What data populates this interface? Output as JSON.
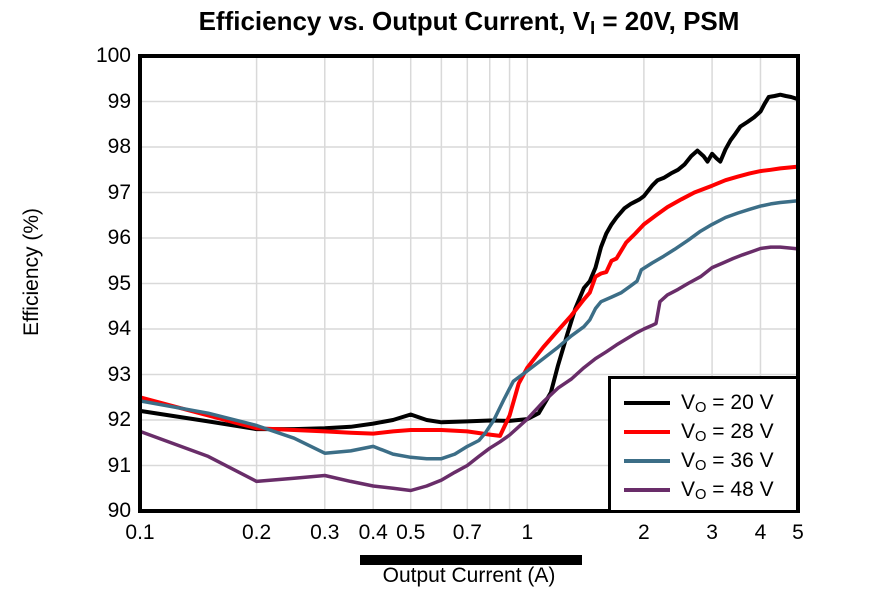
{
  "chart_data": {
    "type": "line",
    "title": {
      "prefix": "Efficiency vs. Output Current, V",
      "sub": "I",
      "suffix": " = 20V, PSM"
    },
    "xlabel": "Output Current (A)",
    "ylabel": "Efficiency (%)",
    "x_scale": "log",
    "xlim": [
      0.1,
      5
    ],
    "ylim": [
      90,
      100
    ],
    "grid": true,
    "grid_color": "#d9d9d9",
    "legend_position": "lower right",
    "x_ticks": [
      0.1,
      0.2,
      0.3,
      0.4,
      0.5,
      0.7,
      1,
      2,
      3,
      4,
      5
    ],
    "x_tick_labels": [
      "0.1",
      "0.2",
      "0.3",
      "0.4",
      "0.5",
      "0.7",
      "1",
      "2",
      "3",
      "4",
      "5"
    ],
    "y_ticks": [
      90,
      91,
      92,
      93,
      94,
      95,
      96,
      97,
      98,
      99,
      100
    ],
    "y_tick_labels": [
      "90",
      "91",
      "92",
      "93",
      "94",
      "95",
      "96",
      "97",
      "98",
      "99",
      "100"
    ],
    "x_gridlines": [
      0.2,
      0.3,
      0.4,
      0.5,
      0.6,
      0.7,
      0.8,
      0.9,
      1,
      2,
      3,
      4
    ],
    "y_gridlines": [
      91,
      92,
      93,
      94,
      95,
      96,
      97,
      98,
      99
    ],
    "series": [
      {
        "label_prefix": "V",
        "label_sub": "O",
        "label_suffix": " = 20 V",
        "color": "#000000",
        "line_width": 4,
        "points": [
          [
            0.1,
            92.2
          ],
          [
            0.15,
            91.97
          ],
          [
            0.2,
            91.8
          ],
          [
            0.25,
            91.8
          ],
          [
            0.3,
            91.82
          ],
          [
            0.35,
            91.85
          ],
          [
            0.4,
            91.92
          ],
          [
            0.45,
            92.0
          ],
          [
            0.5,
            92.12
          ],
          [
            0.55,
            92.0
          ],
          [
            0.6,
            91.95
          ],
          [
            0.7,
            91.97
          ],
          [
            0.8,
            91.99
          ],
          [
            0.9,
            91.98
          ],
          [
            1.0,
            92.02
          ],
          [
            1.07,
            92.15
          ],
          [
            1.15,
            92.6
          ],
          [
            1.2,
            93.2
          ],
          [
            1.27,
            93.9
          ],
          [
            1.33,
            94.45
          ],
          [
            1.4,
            94.9
          ],
          [
            1.45,
            95.05
          ],
          [
            1.5,
            95.35
          ],
          [
            1.55,
            95.8
          ],
          [
            1.6,
            96.1
          ],
          [
            1.65,
            96.3
          ],
          [
            1.7,
            96.45
          ],
          [
            1.78,
            96.65
          ],
          [
            1.85,
            96.75
          ],
          [
            1.95,
            96.85
          ],
          [
            2.0,
            96.92
          ],
          [
            2.1,
            97.15
          ],
          [
            2.17,
            97.27
          ],
          [
            2.25,
            97.32
          ],
          [
            2.35,
            97.42
          ],
          [
            2.45,
            97.5
          ],
          [
            2.55,
            97.62
          ],
          [
            2.65,
            97.8
          ],
          [
            2.75,
            97.92
          ],
          [
            2.85,
            97.8
          ],
          [
            2.92,
            97.68
          ],
          [
            3.0,
            97.85
          ],
          [
            3.08,
            97.75
          ],
          [
            3.15,
            97.68
          ],
          [
            3.25,
            97.95
          ],
          [
            3.35,
            98.15
          ],
          [
            3.45,
            98.3
          ],
          [
            3.55,
            98.45
          ],
          [
            3.7,
            98.55
          ],
          [
            3.85,
            98.65
          ],
          [
            4.0,
            98.78
          ],
          [
            4.1,
            98.95
          ],
          [
            4.2,
            99.1
          ],
          [
            4.35,
            99.12
          ],
          [
            4.5,
            99.15
          ],
          [
            4.65,
            99.12
          ],
          [
            4.8,
            99.1
          ],
          [
            5.0,
            99.05
          ]
        ]
      },
      {
        "label_prefix": "V",
        "label_sub": "O",
        "label_suffix": " = 28 V",
        "color": "#ff0000",
        "line_width": 4,
        "points": [
          [
            0.1,
            92.5
          ],
          [
            0.15,
            92.1
          ],
          [
            0.2,
            91.82
          ],
          [
            0.25,
            91.78
          ],
          [
            0.3,
            91.75
          ],
          [
            0.35,
            91.72
          ],
          [
            0.4,
            91.7
          ],
          [
            0.45,
            91.75
          ],
          [
            0.5,
            91.78
          ],
          [
            0.6,
            91.78
          ],
          [
            0.7,
            91.75
          ],
          [
            0.8,
            91.68
          ],
          [
            0.85,
            91.65
          ],
          [
            0.9,
            92.1
          ],
          [
            0.95,
            92.8
          ],
          [
            1.0,
            93.15
          ],
          [
            1.1,
            93.6
          ],
          [
            1.2,
            93.97
          ],
          [
            1.3,
            94.3
          ],
          [
            1.4,
            94.65
          ],
          [
            1.45,
            94.8
          ],
          [
            1.5,
            95.15
          ],
          [
            1.55,
            95.22
          ],
          [
            1.6,
            95.25
          ],
          [
            1.65,
            95.5
          ],
          [
            1.7,
            95.55
          ],
          [
            1.8,
            95.9
          ],
          [
            1.9,
            96.1
          ],
          [
            2.0,
            96.3
          ],
          [
            2.15,
            96.5
          ],
          [
            2.3,
            96.68
          ],
          [
            2.5,
            96.85
          ],
          [
            2.7,
            97.0
          ],
          [
            3.0,
            97.15
          ],
          [
            3.25,
            97.27
          ],
          [
            3.5,
            97.35
          ],
          [
            3.75,
            97.42
          ],
          [
            4.0,
            97.47
          ],
          [
            4.25,
            97.5
          ],
          [
            4.5,
            97.53
          ],
          [
            4.75,
            97.55
          ],
          [
            5.0,
            97.57
          ]
        ]
      },
      {
        "label_prefix": "V",
        "label_sub": "O",
        "label_suffix": " = 36 V",
        "color": "#3c6e87",
        "line_width": 3.5,
        "points": [
          [
            0.1,
            92.42
          ],
          [
            0.15,
            92.15
          ],
          [
            0.2,
            91.88
          ],
          [
            0.25,
            91.6
          ],
          [
            0.3,
            91.27
          ],
          [
            0.35,
            91.32
          ],
          [
            0.4,
            91.42
          ],
          [
            0.45,
            91.25
          ],
          [
            0.5,
            91.18
          ],
          [
            0.55,
            91.15
          ],
          [
            0.6,
            91.15
          ],
          [
            0.65,
            91.25
          ],
          [
            0.7,
            91.42
          ],
          [
            0.75,
            91.55
          ],
          [
            0.78,
            91.72
          ],
          [
            0.82,
            92.0
          ],
          [
            0.87,
            92.45
          ],
          [
            0.92,
            92.85
          ],
          [
            1.0,
            93.08
          ],
          [
            1.1,
            93.35
          ],
          [
            1.2,
            93.6
          ],
          [
            1.3,
            93.85
          ],
          [
            1.4,
            94.05
          ],
          [
            1.45,
            94.2
          ],
          [
            1.5,
            94.45
          ],
          [
            1.55,
            94.6
          ],
          [
            1.65,
            94.7
          ],
          [
            1.75,
            94.8
          ],
          [
            1.85,
            94.95
          ],
          [
            1.92,
            95.05
          ],
          [
            1.97,
            95.3
          ],
          [
            2.1,
            95.45
          ],
          [
            2.25,
            95.6
          ],
          [
            2.4,
            95.75
          ],
          [
            2.6,
            95.95
          ],
          [
            2.8,
            96.15
          ],
          [
            3.0,
            96.3
          ],
          [
            3.25,
            96.45
          ],
          [
            3.5,
            96.55
          ],
          [
            3.75,
            96.63
          ],
          [
            4.0,
            96.7
          ],
          [
            4.25,
            96.75
          ],
          [
            4.5,
            96.78
          ],
          [
            4.75,
            96.8
          ],
          [
            5.0,
            96.82
          ]
        ]
      },
      {
        "label_prefix": "V",
        "label_sub": "O",
        "label_suffix": " = 48 V",
        "color": "#692d69",
        "line_width": 3.5,
        "points": [
          [
            0.1,
            91.75
          ],
          [
            0.15,
            91.2
          ],
          [
            0.2,
            90.65
          ],
          [
            0.25,
            90.72
          ],
          [
            0.3,
            90.78
          ],
          [
            0.35,
            90.65
          ],
          [
            0.4,
            90.55
          ],
          [
            0.45,
            90.5
          ],
          [
            0.5,
            90.45
          ],
          [
            0.55,
            90.55
          ],
          [
            0.6,
            90.68
          ],
          [
            0.65,
            90.85
          ],
          [
            0.7,
            91.0
          ],
          [
            0.75,
            91.2
          ],
          [
            0.8,
            91.38
          ],
          [
            0.85,
            91.52
          ],
          [
            0.9,
            91.67
          ],
          [
            0.95,
            91.85
          ],
          [
            1.0,
            92.02
          ],
          [
            1.1,
            92.4
          ],
          [
            1.2,
            92.7
          ],
          [
            1.3,
            92.9
          ],
          [
            1.4,
            93.15
          ],
          [
            1.5,
            93.35
          ],
          [
            1.6,
            93.5
          ],
          [
            1.7,
            93.65
          ],
          [
            1.8,
            93.78
          ],
          [
            1.9,
            93.9
          ],
          [
            2.0,
            94.0
          ],
          [
            2.1,
            94.08
          ],
          [
            2.15,
            94.12
          ],
          [
            2.2,
            94.6
          ],
          [
            2.3,
            94.75
          ],
          [
            2.45,
            94.87
          ],
          [
            2.6,
            95.0
          ],
          [
            2.8,
            95.15
          ],
          [
            3.0,
            95.35
          ],
          [
            3.2,
            95.45
          ],
          [
            3.4,
            95.55
          ],
          [
            3.6,
            95.63
          ],
          [
            3.8,
            95.7
          ],
          [
            4.0,
            95.77
          ],
          [
            4.25,
            95.8
          ],
          [
            4.5,
            95.8
          ],
          [
            4.75,
            95.78
          ],
          [
            5.0,
            95.76
          ]
        ]
      }
    ]
  }
}
